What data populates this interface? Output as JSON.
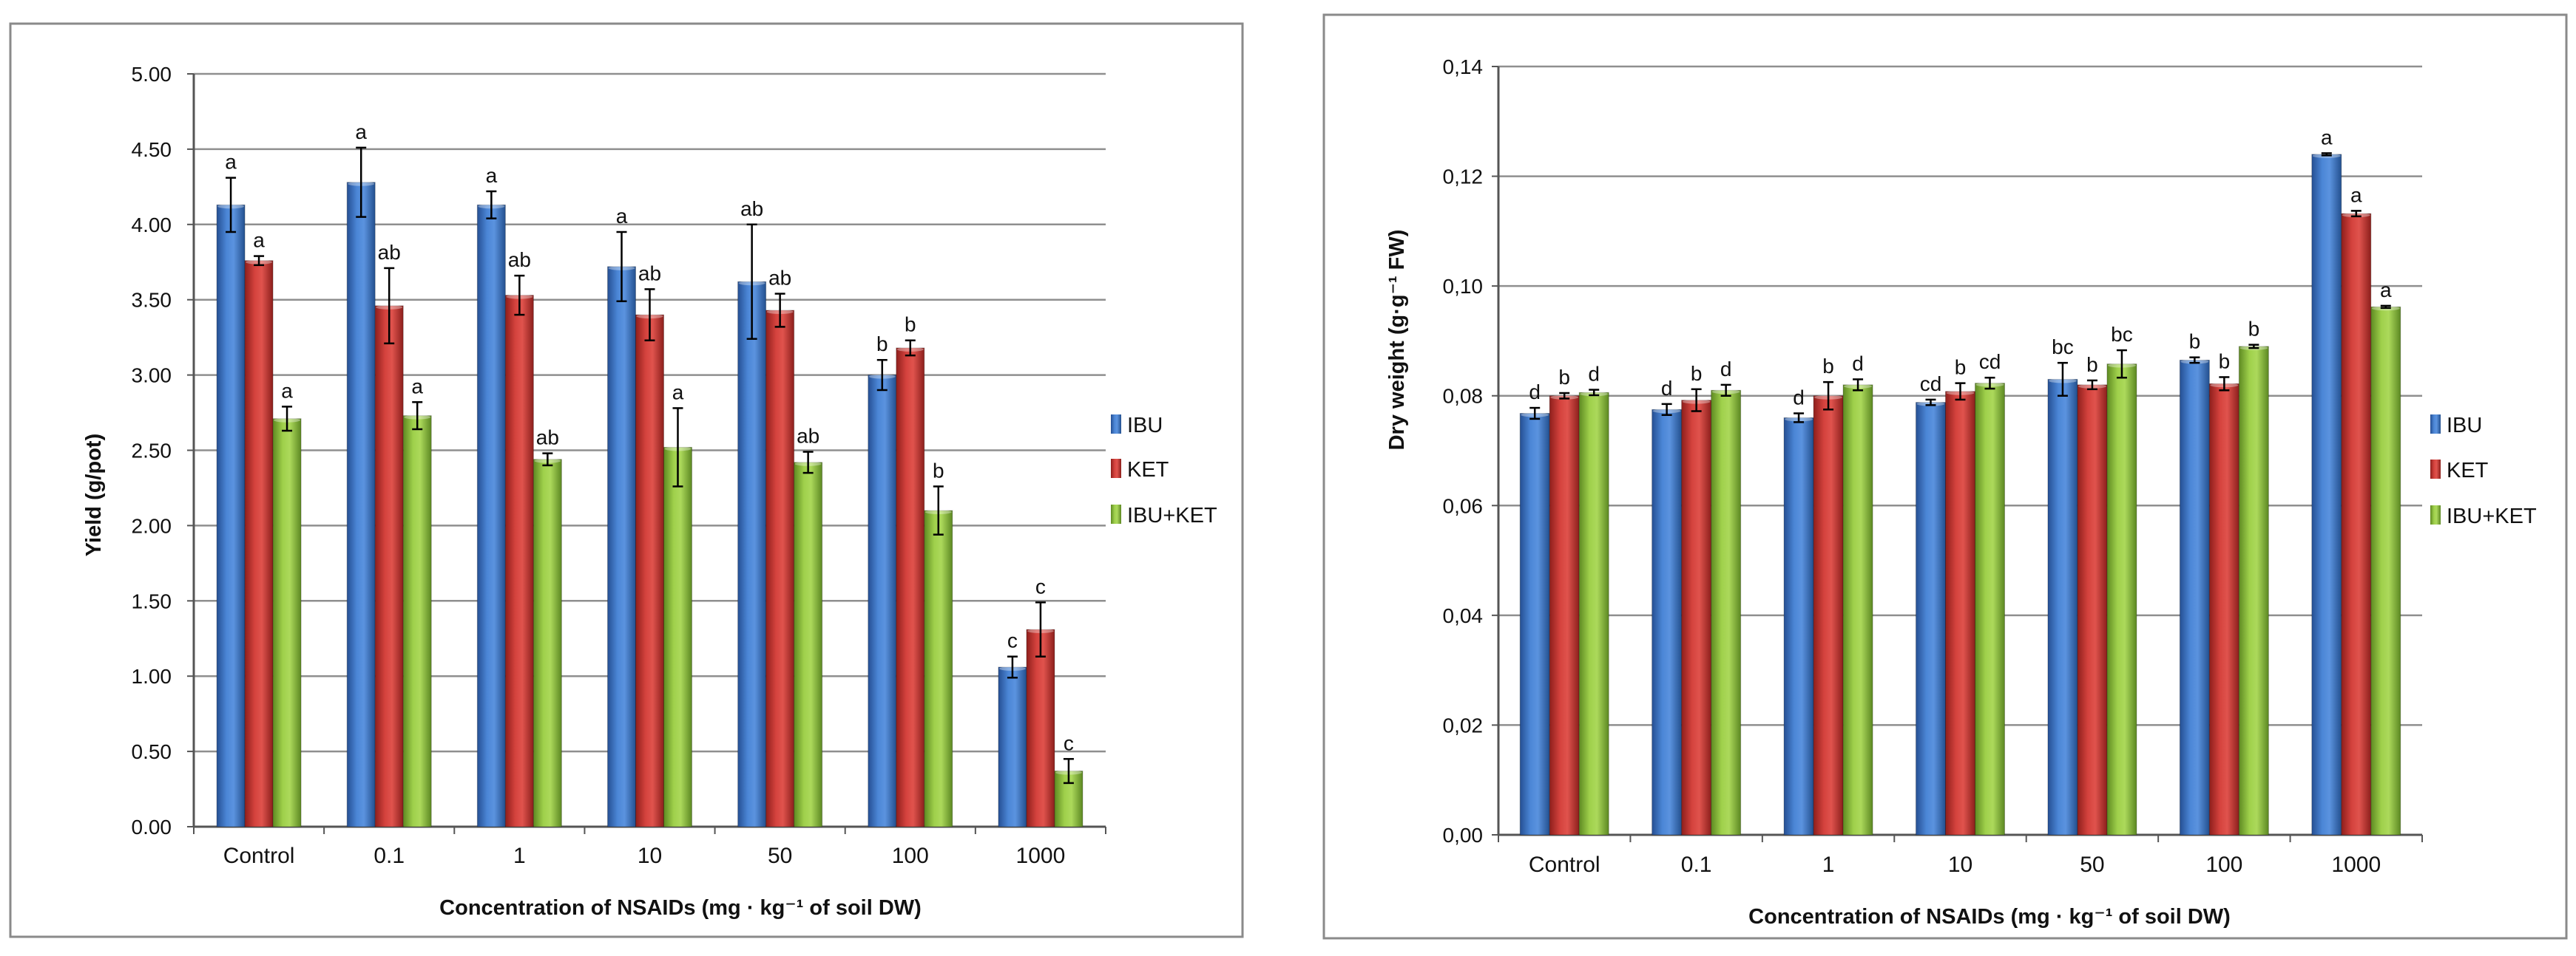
{
  "chart_data": [
    {
      "type": "bar",
      "title": "",
      "xlabel": "Concentration of NSAIDs (mg · kg⁻¹ of soil DW)",
      "ylabel": "Yield (g/pot)",
      "ylim": [
        0,
        5
      ],
      "yticks": [
        "0.00",
        "0.50",
        "1.00",
        "1.50",
        "2.00",
        "2.50",
        "3.00",
        "3.50",
        "4.00",
        "4.50",
        "5.00"
      ],
      "ytick_values": [
        0,
        0.5,
        1,
        1.5,
        2,
        2.5,
        3,
        3.5,
        4,
        4.5,
        5
      ],
      "grid": true,
      "legend": "right",
      "categories": [
        "Control",
        "0.1",
        "1",
        "10",
        "50",
        "100",
        "1000"
      ],
      "series": [
        {
          "name": "IBU",
          "color": "#3b74c7",
          "values": [
            4.13,
            4.28,
            4.13,
            3.72,
            3.62,
            3.0,
            1.06
          ],
          "errors": [
            0.18,
            0.23,
            0.09,
            0.23,
            0.38,
            0.1,
            0.07
          ],
          "letters": [
            "a",
            "a",
            "a",
            "a",
            "ab",
            "b",
            "c"
          ]
        },
        {
          "name": "KET",
          "color": "#c83a36",
          "values": [
            3.76,
            3.46,
            3.53,
            3.4,
            3.43,
            3.18,
            1.31
          ],
          "errors": [
            0.03,
            0.25,
            0.13,
            0.17,
            0.11,
            0.05,
            0.18
          ],
          "letters": [
            "a",
            "ab",
            "ab",
            "ab",
            "ab",
            "b",
            "c"
          ]
        },
        {
          "name": "IBU+KET",
          "color": "#8fc23e",
          "values": [
            2.71,
            2.73,
            2.44,
            2.52,
            2.42,
            2.1,
            0.37
          ],
          "errors": [
            0.08,
            0.09,
            0.04,
            0.26,
            0.07,
            0.16,
            0.08
          ],
          "letters": [
            "a",
            "a",
            "ab",
            "a",
            "ab",
            "b",
            "c"
          ]
        }
      ]
    },
    {
      "type": "bar",
      "title": "",
      "xlabel": "Concentration of NSAIDs (mg · kg⁻¹ of soil DW)",
      "ylabel": "Dry weight (g·g⁻¹ FW)",
      "ylim": [
        0,
        0.14
      ],
      "yticks": [
        "0,00",
        "0,02",
        "0,04",
        "0,06",
        "0,08",
        "0,10",
        "0,12",
        "0,14"
      ],
      "ytick_values": [
        0,
        0.02,
        0.04,
        0.06,
        0.08,
        0.1,
        0.12,
        0.14
      ],
      "grid": true,
      "legend": "right",
      "categories": [
        "Control",
        "0.1",
        "1",
        "10",
        "50",
        "100",
        "1000"
      ],
      "series": [
        {
          "name": "IBU",
          "color": "#3b74c7",
          "values": [
            0.0768,
            0.0775,
            0.076,
            0.0788,
            0.083,
            0.0865,
            0.124
          ],
          "errors": [
            0.001,
            0.001,
            0.0008,
            0.0005,
            0.003,
            0.0005,
            0.0002
          ],
          "letters": [
            "d",
            "d",
            "d",
            "cd",
            "bc",
            "b",
            "a"
          ]
        },
        {
          "name": "KET",
          "color": "#c83a36",
          "values": [
            0.08,
            0.0792,
            0.08,
            0.0808,
            0.082,
            0.0822,
            0.1132
          ],
          "errors": [
            0.0005,
            0.002,
            0.0025,
            0.0015,
            0.0008,
            0.0012,
            0.0005
          ],
          "letters": [
            "b",
            "b",
            "b",
            "b",
            "b",
            "b",
            "a"
          ]
        },
        {
          "name": "IBU+KET",
          "color": "#8fc23e",
          "values": [
            0.0806,
            0.081,
            0.082,
            0.0823,
            0.0858,
            0.089,
            0.0962
          ],
          "errors": [
            0.0005,
            0.001,
            0.001,
            0.001,
            0.0025,
            0.0003,
            0.0002
          ],
          "letters": [
            "d",
            "d",
            "d",
            "cd",
            "bc",
            "b",
            "a"
          ]
        }
      ]
    }
  ]
}
